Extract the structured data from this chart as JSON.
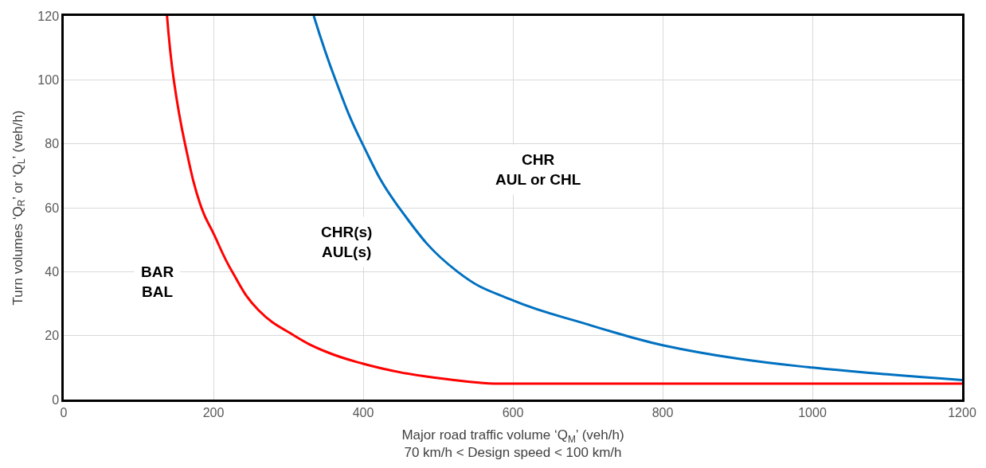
{
  "chart_data": {
    "type": "line",
    "xlabel": "Major road traffic volume ‘Q$_{M}$’ (veh/h)\n70 km/h < Design speed < 100 km/h",
    "ylabel": "Turn volumes ‘Q$_{R}$’ or ‘Q$_{L}$’ (veh/h)",
    "series": [
      {
        "color": "#ff0000",
        "x": [
          138,
          147,
          162,
          184,
          200,
          225,
          260,
          308,
          350,
          400,
          450,
          500,
          540,
          575,
          600,
          800,
          1000,
          1200
        ],
        "values": [
          120,
          100,
          80,
          60,
          52,
          40,
          28,
          20,
          15,
          11.2,
          8.5,
          6.7,
          5.6,
          5,
          5,
          5,
          5,
          5
        ]
      },
      {
        "color": "#0070c0",
        "x": [
          334,
          363,
          399,
          448,
          526,
          600,
          700,
          758,
          800,
          900,
          1000,
          1100,
          1200
        ],
        "values": [
          120,
          100,
          80,
          60,
          40,
          31,
          23.5,
          19.5,
          17,
          12.8,
          10,
          7.9,
          6.1
        ]
      }
    ],
    "xlim": [
      0,
      1200
    ],
    "xticks": [
      0,
      200,
      400,
      600,
      800,
      1000,
      1200
    ],
    "ylim": [
      0,
      120
    ],
    "yticks": [
      0,
      20,
      40,
      60,
      80,
      100,
      120
    ],
    "grid": true,
    "marker": "none",
    "line_style": "solid",
    "annotations": [
      "BAR\nBAL",
      "CHR(s)\nAUL(s)",
      "CHR\nAUL or CHL"
    ]
  }
}
